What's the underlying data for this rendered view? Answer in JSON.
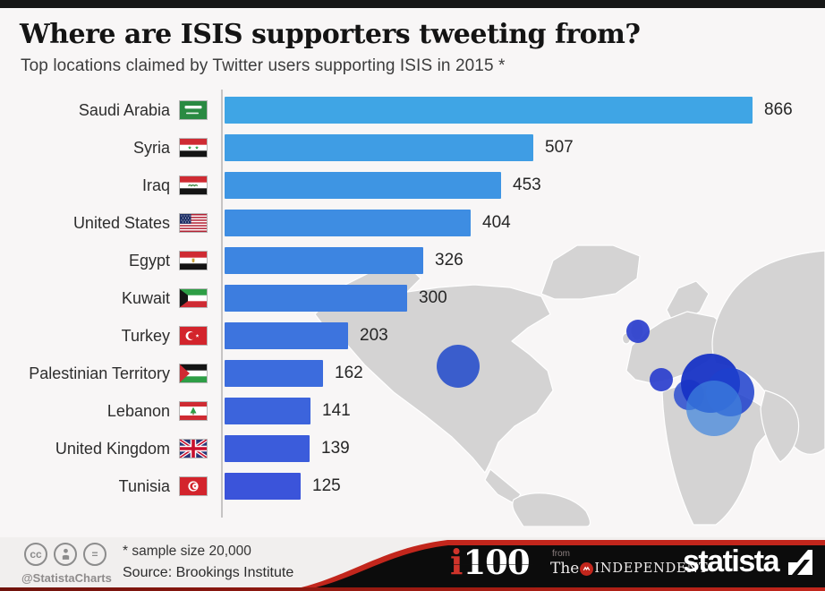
{
  "page": {
    "title": "Where are ISIS supporters tweeting from?",
    "subtitle": "Top locations claimed by Twitter users supporting ISIS in 2015 *"
  },
  "chart_data": {
    "type": "bar",
    "orientation": "horizontal",
    "title": "Where are ISIS supporters tweeting from?",
    "subtitle": "Top locations claimed by Twitter users supporting ISIS in 2015 *",
    "categories": [
      "Saudi Arabia",
      "Syria",
      "Iraq",
      "United States",
      "Egypt",
      "Kuwait",
      "Turkey",
      "Palestinian Territory",
      "Lebanon",
      "United Kingdom",
      "Tunisia"
    ],
    "values": [
      866,
      507,
      453,
      404,
      326,
      300,
      203,
      162,
      141,
      139,
      125
    ],
    "value_labels": [
      "866",
      "507",
      "453",
      "404",
      "326",
      "300",
      "203",
      "162",
      "141",
      "139",
      "125"
    ],
    "xlim": [
      0,
      900
    ],
    "grid": false,
    "legend": "none",
    "bar_colors": [
      "#3FA5E5",
      "#3F9DE4",
      "#3E95E3",
      "#3E8DE2",
      "#3D85E1",
      "#3D7DDF",
      "#3D74DE",
      "#3C6CDD",
      "#3C64DC",
      "#3B5CDB",
      "#3B54DA"
    ],
    "flag_codes": [
      "sa",
      "sy",
      "iq",
      "us",
      "eg",
      "kw",
      "tr",
      "ps",
      "lb",
      "gb",
      "tn"
    ],
    "map_bubbles": [
      {
        "region": "united-states",
        "x": 512,
        "y": 143,
        "r": 24,
        "color": "#2c53cb",
        "opacity": 0.92
      },
      {
        "region": "united-kingdom",
        "x": 713,
        "y": 104,
        "r": 13,
        "color": "#2a3ecd",
        "opacity": 0.92
      },
      {
        "region": "western-europe",
        "x": 739,
        "y": 158,
        "r": 13,
        "color": "#2a3ecd",
        "opacity": 0.92
      },
      {
        "region": "eastern-mediterranean",
        "x": 770,
        "y": 175,
        "r": 17,
        "color": "#2b4ed0",
        "opacity": 0.85
      },
      {
        "region": "levant-large",
        "x": 794,
        "y": 162,
        "r": 33,
        "color": "#1733c5",
        "opacity": 0.95
      },
      {
        "region": "gulf",
        "x": 816,
        "y": 172,
        "r": 27,
        "color": "#1d40cc",
        "opacity": 0.85
      },
      {
        "region": "arabian-peninsula-light",
        "x": 798,
        "y": 190,
        "r": 31,
        "color": "#3f85de",
        "opacity": 0.7
      }
    ]
  },
  "footer": {
    "license_handle": "@StatistaCharts",
    "cc_labels": {
      "cc": "cc",
      "by": "person",
      "nd": "="
    },
    "note": "* sample size 20,000",
    "source": "Source: Brookings Institute",
    "logo_i100_i": "i",
    "logo_i100_number": "100",
    "logo_from": "from",
    "logo_the": "The",
    "logo_independent": "INDEPENDENT",
    "logo_statista": "statista"
  },
  "colors": {
    "bar_gradient_top": "#3FA5E5",
    "bar_gradient_bottom": "#3B54DA",
    "accent_red": "#c2261c",
    "swoosh_black": "#0c0c0c",
    "map_gray": "#d4d3d3"
  }
}
